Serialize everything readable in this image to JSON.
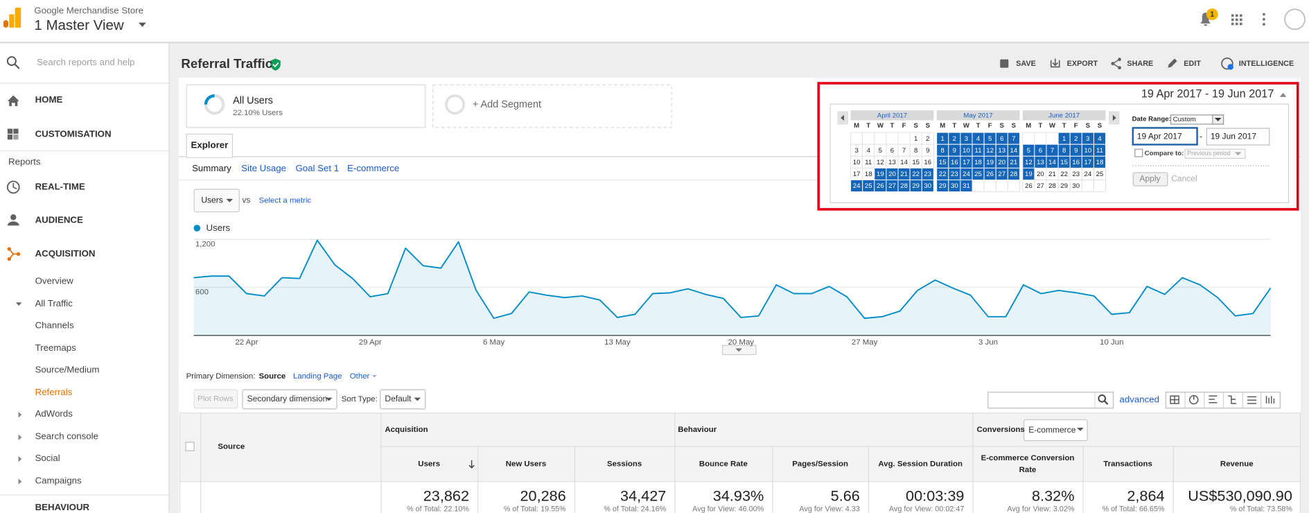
{
  "header": {
    "account": "Google Merchandise Store",
    "view": "1 Master View",
    "notifications": "1"
  },
  "sidebar": {
    "search": "Search reports and help",
    "items": [
      "HOME",
      "CUSTOMISATION",
      "Reports",
      "REAL-TIME",
      "AUDIENCE",
      "ACQUISITION",
      "Overview",
      "All Traffic",
      "Channels",
      "Treemaps",
      "Source/Medium",
      "Referrals",
      "AdWords",
      "Search console",
      "Social",
      "Campaigns",
      "BEHAVIOUR"
    ]
  },
  "page": {
    "title": "Referral Traffic",
    "actions": [
      "SAVE",
      "EXPORT",
      "SHARE",
      "EDIT",
      "INTELLIGENCE"
    ]
  },
  "segments": {
    "active": {
      "name": "All Users",
      "share": "22.10% Users"
    },
    "add": "+ Add Segment"
  },
  "tabs": {
    "main": "Explorer",
    "sub": [
      "Summary",
      "Site Usage",
      "Goal Set 1",
      "E-commerce"
    ]
  },
  "metric": {
    "selected": "Users",
    "vs": "vs",
    "other": "Select a metric"
  },
  "chart_data": {
    "type": "line",
    "categories": [
      null,
      null,
      null,
      "22 Apr",
      null,
      null,
      null,
      null,
      null,
      null,
      "29 Apr",
      null,
      null,
      null,
      null,
      null,
      null,
      "6 May",
      null,
      null,
      null,
      null,
      null,
      null,
      "13 May",
      null,
      null,
      null,
      null,
      null,
      null,
      "20 May",
      null,
      null,
      null,
      null,
      null,
      null,
      "27 May",
      null,
      null,
      null,
      null,
      null,
      null,
      "3 Jun",
      null,
      null,
      null,
      null,
      null,
      null,
      "10 Jun",
      null,
      null,
      null,
      null,
      null,
      null,
      null,
      null,
      null
    ],
    "series": [
      {
        "name": "Users",
        "color": "#058dc7",
        "values": [
          720,
          740,
          740,
          520,
          490,
          720,
          710,
          1190,
          880,
          710,
          480,
          520,
          1090,
          870,
          840,
          1170,
          560,
          210,
          270,
          540,
          500,
          470,
          490,
          440,
          220,
          260,
          520,
          530,
          580,
          510,
          460,
          220,
          240,
          630,
          520,
          520,
          610,
          480,
          210,
          230,
          300,
          560,
          690,
          590,
          500,
          230,
          230,
          630,
          520,
          560,
          530,
          490,
          260,
          280,
          610,
          510,
          720,
          630,
          470,
          240,
          270,
          590
        ]
      }
    ],
    "ylim": [
      0,
      1290
    ],
    "yticks": [
      600,
      {
        "value": 1200,
        "label": "1,200"
      }
    ],
    "grid": true
  },
  "date_picker": {
    "range": "19 Apr 2017 - 19 Jun 2017",
    "calendars": [
      {
        "month": "April 2017",
        "weekdays": [
          "M",
          "T",
          "W",
          "T",
          "F",
          "S",
          "S"
        ],
        "weeks": [
          [
            null,
            null,
            null,
            null,
            null,
            1,
            2
          ],
          [
            3,
            4,
            5,
            6,
            7,
            8,
            9
          ],
          [
            10,
            11,
            12,
            13,
            14,
            15,
            16
          ],
          [
            17,
            18,
            19,
            20,
            21,
            22,
            23
          ],
          [
            24,
            25,
            26,
            27,
            28,
            29,
            30
          ]
        ]
      },
      {
        "month": "May 2017",
        "weekdays": [
          "M",
          "T",
          "W",
          "T",
          "F",
          "S",
          "S"
        ],
        "weeks": [
          [
            1,
            2,
            3,
            4,
            5,
            6,
            7
          ],
          [
            8,
            9,
            10,
            11,
            12,
            13,
            14
          ],
          [
            15,
            16,
            17,
            18,
            19,
            20,
            21
          ],
          [
            22,
            23,
            24,
            25,
            26,
            27,
            28
          ],
          [
            29,
            30,
            31,
            null,
            null,
            null,
            null
          ]
        ]
      },
      {
        "month": "June 2017",
        "weekdays": [
          "M",
          "T",
          "W",
          "T",
          "F",
          "S",
          "S"
        ],
        "weeks": [
          [
            null,
            null,
            null,
            1,
            2,
            3,
            4
          ],
          [
            5,
            6,
            7,
            8,
            9,
            10,
            11
          ],
          [
            12,
            13,
            14,
            15,
            16,
            17,
            18
          ],
          [
            19,
            20,
            21,
            22,
            23,
            24,
            25
          ],
          [
            26,
            27,
            28,
            29,
            30,
            null,
            null
          ]
        ]
      }
    ],
    "date_range_label": "Date Range:",
    "date_range": "Custom",
    "from": "19 Apr 2017",
    "separator": "-",
    "to": "19 Jun 2017",
    "compare_label": "Compare to:",
    "compare": "Previous period",
    "apply": "Apply",
    "cancel": "Cancel"
  },
  "dimensions": {
    "label": "Primary Dimension:",
    "options": [
      "Source",
      "Landing Page",
      "Other"
    ]
  },
  "controls": {
    "plot_rows": "Plot Rows",
    "secondary": "Secondary dimension",
    "sort_label": "Sort Type:",
    "sort": "Default",
    "advanced": "advanced"
  },
  "table": {
    "dimension": "Source",
    "groups": [
      "Acquisition",
      "Behaviour",
      "Conversions"
    ],
    "conversion_goal": "E-commerce",
    "columns": [
      "Users",
      "New Users",
      "Sessions",
      "Bounce Rate",
      "Pages/Session",
      "Avg. Session Duration",
      "E-commerce Conversion Rate",
      "Transactions",
      "Revenue"
    ],
    "totals": [
      {
        "value": "23,862",
        "note": "% of Total: 22.10%"
      },
      {
        "value": "20,286",
        "note": "% of Total: 19.55%"
      },
      {
        "value": "34,427",
        "note": "% of Total: 24.16%"
      },
      {
        "value": "34.93%",
        "note": "Avg for View: 46.00%"
      },
      {
        "value": "5.66",
        "note": "Avg for View: 4.33"
      },
      {
        "value": "00:03:39",
        "note": "Avg for View: 00:02:47"
      },
      {
        "value": "8.32%",
        "note": "Avg for View: 3.02%"
      },
      {
        "value": "2,864",
        "note": "% of Total: 66.65%"
      },
      {
        "value": "US$530,090.90",
        "note": "% of Total: 73.58%"
      }
    ]
  }
}
